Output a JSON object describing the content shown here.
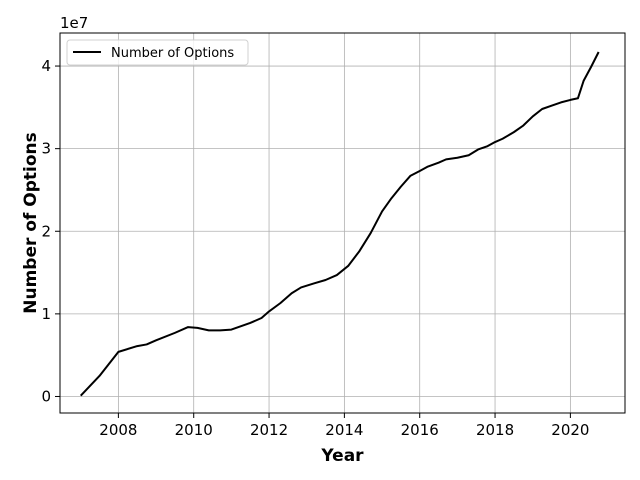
{
  "chart_data": {
    "type": "line",
    "title": "",
    "xlabel": "Year",
    "ylabel": "Number of Options",
    "y_offset_label": "1e7",
    "y_scale": 10000000,
    "xlim": [
      2006.45,
      2021.45
    ],
    "ylim": [
      -2000000,
      44000000
    ],
    "x_ticks": [
      2008,
      2010,
      2012,
      2014,
      2016,
      2018,
      2020
    ],
    "y_ticks": [
      0,
      10000000,
      20000000,
      30000000,
      40000000
    ],
    "grid": true,
    "legend": "top-left",
    "series": [
      {
        "name": "Number of Options",
        "color": "#000000",
        "points": [
          [
            2007.0,
            100000
          ],
          [
            2007.5,
            2500000
          ],
          [
            2008.0,
            5400000
          ],
          [
            2008.5,
            6100000
          ],
          [
            2008.75,
            6300000
          ],
          [
            2009.0,
            6800000
          ],
          [
            2009.5,
            7700000
          ],
          [
            2009.85,
            8400000
          ],
          [
            2010.1,
            8300000
          ],
          [
            2010.4,
            8000000
          ],
          [
            2010.7,
            8000000
          ],
          [
            2011.0,
            8100000
          ],
          [
            2011.5,
            8900000
          ],
          [
            2011.8,
            9500000
          ],
          [
            2012.0,
            10300000
          ],
          [
            2012.3,
            11300000
          ],
          [
            2012.6,
            12500000
          ],
          [
            2012.85,
            13200000
          ],
          [
            2013.2,
            13700000
          ],
          [
            2013.5,
            14100000
          ],
          [
            2013.8,
            14700000
          ],
          [
            2014.1,
            15800000
          ],
          [
            2014.4,
            17600000
          ],
          [
            2014.7,
            19800000
          ],
          [
            2015.0,
            22400000
          ],
          [
            2015.25,
            24000000
          ],
          [
            2015.5,
            25400000
          ],
          [
            2015.75,
            26700000
          ],
          [
            2016.0,
            27300000
          ],
          [
            2016.2,
            27800000
          ],
          [
            2016.5,
            28300000
          ],
          [
            2016.7,
            28700000
          ],
          [
            2017.0,
            28900000
          ],
          [
            2017.3,
            29200000
          ],
          [
            2017.55,
            29900000
          ],
          [
            2017.8,
            30300000
          ],
          [
            2018.0,
            30800000
          ],
          [
            2018.2,
            31200000
          ],
          [
            2018.5,
            32000000
          ],
          [
            2018.75,
            32800000
          ],
          [
            2019.0,
            33900000
          ],
          [
            2019.25,
            34800000
          ],
          [
            2019.5,
            35200000
          ],
          [
            2019.75,
            35600000
          ],
          [
            2020.0,
            35900000
          ],
          [
            2020.2,
            36100000
          ],
          [
            2020.35,
            38200000
          ],
          [
            2020.55,
            39900000
          ],
          [
            2020.75,
            41700000
          ]
        ]
      }
    ]
  }
}
